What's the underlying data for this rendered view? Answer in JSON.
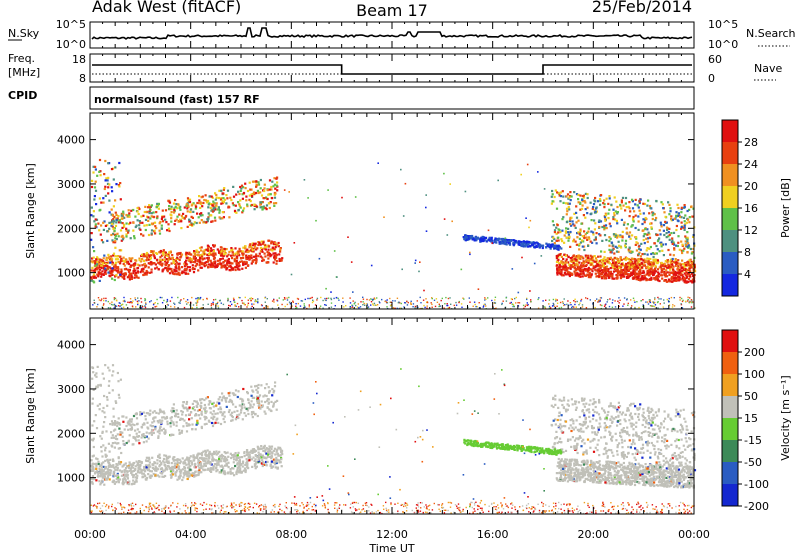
{
  "header": {
    "radar": "Adak West (fitACF)",
    "beam": "Beam 17",
    "date": "25/Feb/2014"
  },
  "nsky_panel": {
    "left_label": "N.Sky",
    "right_label": "N.Search",
    "left_ticks": [
      "10^5",
      "10^0"
    ],
    "right_ticks": [
      "10^5",
      "10^0"
    ]
  },
  "freq_panel": {
    "left_label_line1": "Freq.",
    "left_label_line2": "[MHz]",
    "right_label": "Nave",
    "left_ticks": [
      "18",
      "8"
    ],
    "right_ticks": [
      "60",
      "0"
    ]
  },
  "cpid": {
    "label": "CPID",
    "text": "normalsound (fast) 157 RF"
  },
  "chart_data": [
    {
      "type": "heatmap",
      "name": "power",
      "ylabel": "Slant Range [km]",
      "xlabel": "Time UT",
      "y_ticks": [
        "1000",
        "2000",
        "3000",
        "4000"
      ],
      "ylim": [
        180,
        4600
      ],
      "colorbar_label": "Power [dB]",
      "colorbar_ticks": [
        "4",
        "8",
        "12",
        "16",
        "20",
        "24",
        "28"
      ],
      "colorbar_colors": [
        "#1428e0",
        "#2a5cc2",
        "#4e9080",
        "#5fc048",
        "#f0d020",
        "#f09020",
        "#e84010",
        "#e01010"
      ]
    },
    {
      "type": "heatmap",
      "name": "velocity",
      "ylabel": "Slant Range [km]",
      "xlabel": "Time UT",
      "y_ticks": [
        "1000",
        "2000",
        "3000",
        "4000"
      ],
      "ylim": [
        180,
        4600
      ],
      "colorbar_label": "Velocity [m s⁻¹]",
      "colorbar_ticks": [
        "200",
        "100",
        "50",
        "15",
        "-15",
        "-50",
        "-100",
        "-200"
      ],
      "colorbar_colors": [
        "#1428d0",
        "#2a5cc2",
        "#3c8a58",
        "#66cc33",
        "#c0c0b8",
        "#f0a020",
        "#f06010",
        "#e01010"
      ]
    }
  ],
  "x_axis": {
    "label": "Time UT",
    "ticks": [
      "00:00",
      "04:00",
      "08:00",
      "12:00",
      "16:00",
      "20:00",
      "00:00"
    ]
  }
}
